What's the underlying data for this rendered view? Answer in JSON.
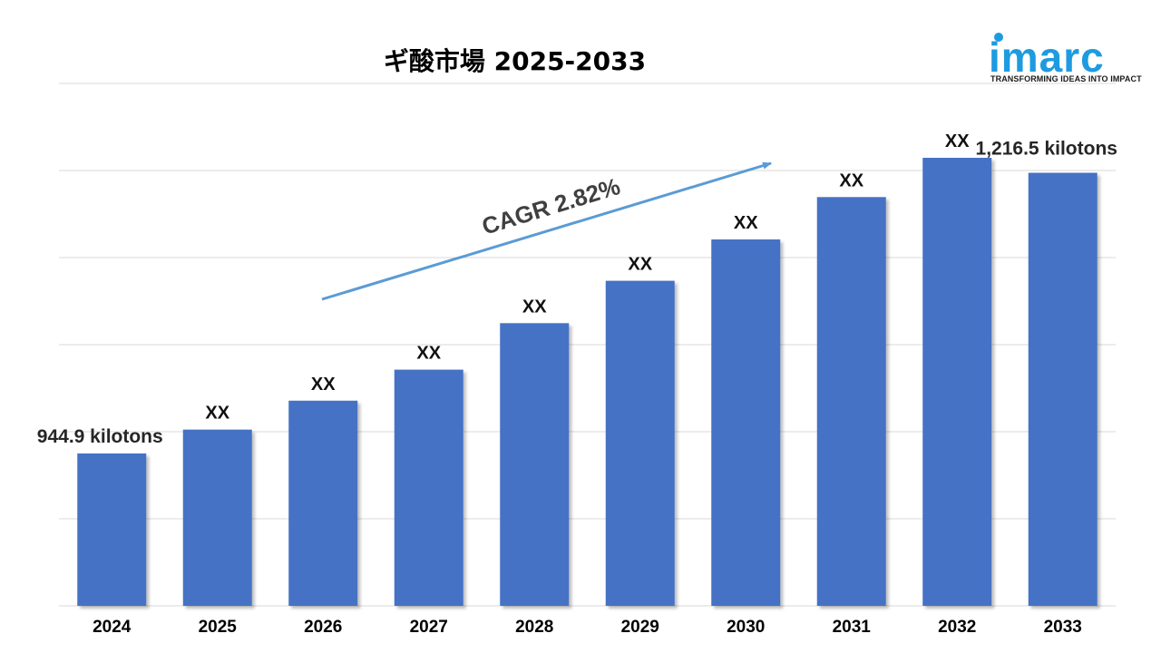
{
  "logo": {
    "text": "imarc",
    "tagline": "TRANSFORMING IDEAS INTO IMPACT"
  },
  "colors": {
    "bar": "#4472c4",
    "grid": "#d9d9d9",
    "arrow": "#5b9bd5",
    "logo": "#1e9be0"
  },
  "chart_data": {
    "type": "bar",
    "title": "ギ酸市場 2025-2033",
    "categories": [
      "2024",
      "2025",
      "2026",
      "2027",
      "2028",
      "2029",
      "2030",
      "2031",
      "2032",
      "2033"
    ],
    "values": [
      944.9,
      968,
      996,
      1026,
      1071,
      1112,
      1152,
      1193,
      1231,
      1216.5
    ],
    "data_labels": [
      "944.9 kilotons",
      "XX",
      "XX",
      "XX",
      "XX",
      "XX",
      "XX",
      "XX",
      "XX",
      "1,216.5 kilotons"
    ],
    "annotation": "CAGR 2.82%",
    "grid": true,
    "legend": "none"
  }
}
